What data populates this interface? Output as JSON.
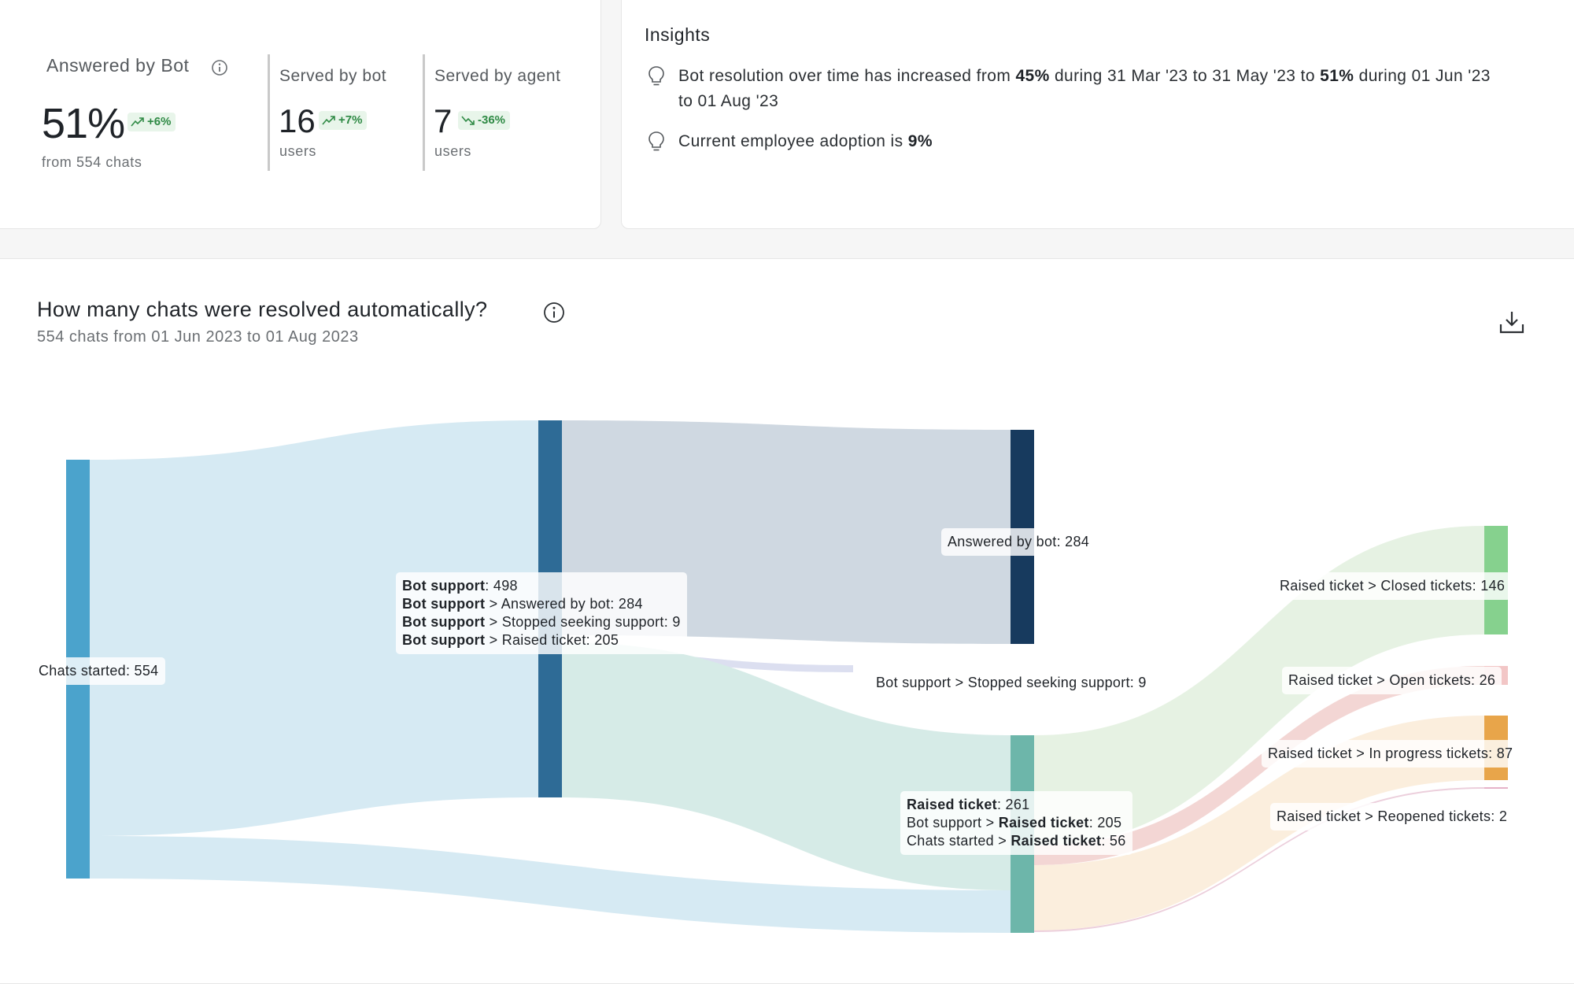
{
  "kpis": {
    "answered_by_bot": {
      "title": "Answered by Bot",
      "value": "51%",
      "delta": "+6%",
      "sub": "from 554 chats"
    },
    "served_by_bot": {
      "title": "Served by bot",
      "value": "16",
      "delta": "+7%",
      "sub": "users"
    },
    "served_by_agent": {
      "title": "Served by agent",
      "value": "7",
      "delta": "-36%",
      "sub": "users"
    }
  },
  "insights": {
    "title": "Insights",
    "items": [
      {
        "pre": "Bot resolution over time has increased from ",
        "b1": "45%",
        "mid": " during 31 Mar '23 to 31 May '23 to ",
        "b2": "51%",
        "post": " during 01 Jun '23",
        "line2": "to 01 Aug '23"
      },
      {
        "pre": "Current employee adoption is ",
        "b1": "9%"
      }
    ]
  },
  "chart": {
    "title": "How many chats were resolved automatically?",
    "subtitle": "554 chats from 01 Jun 2023 to 01 Aug 2023"
  },
  "chart_data": {
    "type": "sankey",
    "nodes": [
      {
        "id": "chats_started",
        "name": "Chats started",
        "value": 554,
        "color": "#4ba3cc"
      },
      {
        "id": "bot_support",
        "name": "Bot support",
        "value": 498,
        "color": "#2e6b96"
      },
      {
        "id": "answered_by_bot",
        "name": "Answered by bot",
        "value": 284,
        "color": "#173a5e"
      },
      {
        "id": "stopped_seeking",
        "name": "Stopped seeking support",
        "value": 9,
        "color": "#c8cce6"
      },
      {
        "id": "raised_ticket",
        "name": "Raised ticket",
        "value": 261,
        "color": "#6db6aa"
      },
      {
        "id": "closed",
        "name": "Closed tickets",
        "value": 146,
        "color": "#86d18e"
      },
      {
        "id": "open",
        "name": "Open tickets",
        "value": 26,
        "color": "#f2c6c6"
      },
      {
        "id": "in_progress",
        "name": "In progress tickets",
        "value": 87,
        "color": "#e8a54a"
      },
      {
        "id": "reopened",
        "name": "Reopened tickets",
        "value": 2,
        "color": "#e6b3c8"
      }
    ],
    "links": [
      {
        "source": "chats_started",
        "target": "bot_support",
        "value": 498
      },
      {
        "source": "chats_started",
        "target": "raised_ticket",
        "value": 56
      },
      {
        "source": "bot_support",
        "target": "answered_by_bot",
        "value": 284
      },
      {
        "source": "bot_support",
        "target": "stopped_seeking",
        "value": 9
      },
      {
        "source": "bot_support",
        "target": "raised_ticket",
        "value": 205
      },
      {
        "source": "raised_ticket",
        "target": "closed",
        "value": 146
      },
      {
        "source": "raised_ticket",
        "target": "open",
        "value": 26
      },
      {
        "source": "raised_ticket",
        "target": "in_progress",
        "value": 87
      },
      {
        "source": "raised_ticket",
        "target": "reopened",
        "value": 2
      }
    ],
    "labels": {
      "chats_started": "Chats started: 554",
      "answered_by_bot": "Answered by bot: 284",
      "stopped_seeking": "Bot support > Stopped seeking support: 9",
      "closed": "Raised ticket > Closed tickets: 146",
      "open": "Raised ticket > Open tickets: 26",
      "in_progress": "Raised ticket > In progress tickets: 87",
      "reopened": "Raised ticket > Reopened tickets: 2"
    },
    "tooltips": {
      "bot_support": [
        {
          "b": "Bot support",
          "t": ": 498"
        },
        {
          "b": "Bot support",
          "t": " > Answered by bot: 284"
        },
        {
          "b": "Bot support",
          "t": " > Stopped seeking support: 9"
        },
        {
          "b": "Bot support",
          "t": " > Raised ticket: 205"
        }
      ],
      "raised_ticket": [
        {
          "pre": "",
          "b": "Raised ticket",
          "t": ": 261"
        },
        {
          "pre": "Bot support > ",
          "b": "Raised ticket",
          "t": ": 205"
        },
        {
          "pre": "Chats started > ",
          "b": "Raised ticket",
          "t": ": 56"
        }
      ]
    }
  },
  "colors": {
    "delta_bg": "#e8f5ea",
    "delta_fg": "#2f8a45",
    "accent": "#2e6b96"
  }
}
